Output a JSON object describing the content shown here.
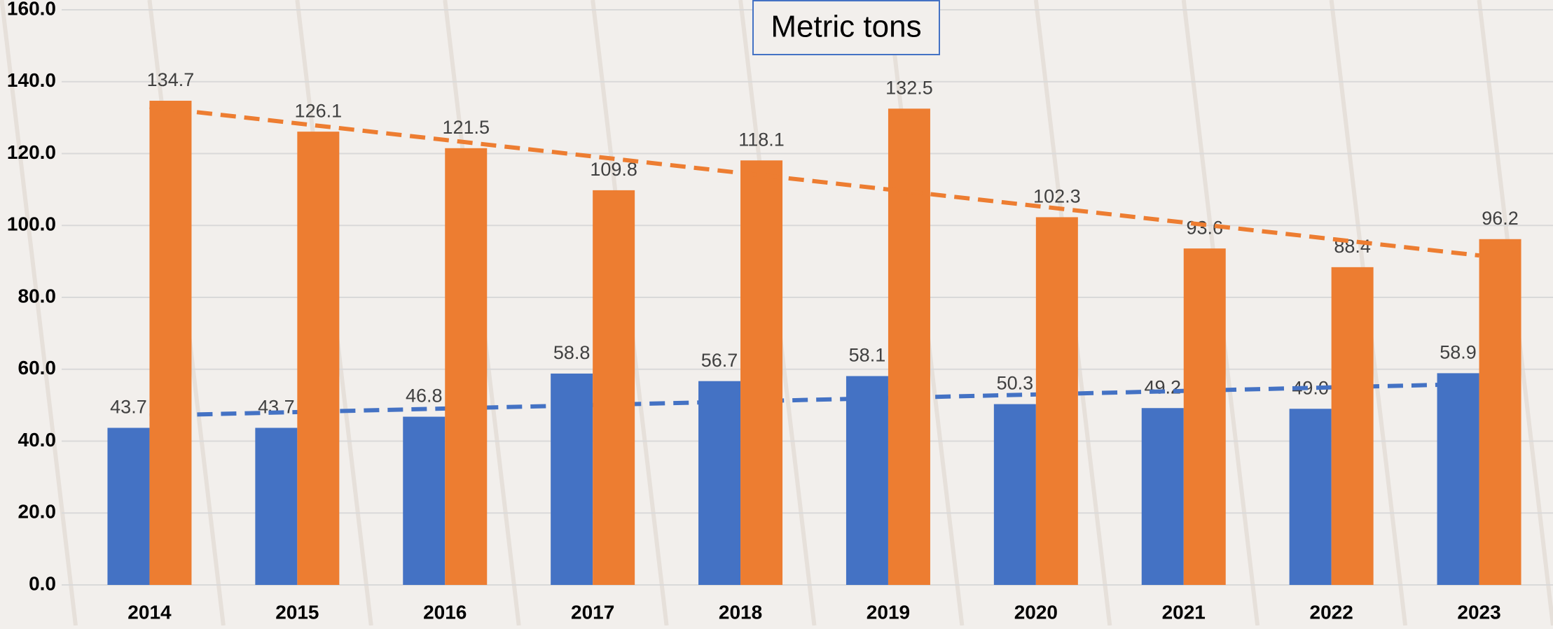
{
  "chart_data": {
    "type": "bar",
    "title": "Metric tons",
    "categories": [
      "2014",
      "2015",
      "2016",
      "2017",
      "2018",
      "2019",
      "2020",
      "2021",
      "2022",
      "2023"
    ],
    "series": [
      {
        "color": "#4472c4",
        "values": [
          43.7,
          43.7,
          46.8,
          58.8,
          56.7,
          58.1,
          50.3,
          49.2,
          49.0,
          58.9
        ],
        "value_labels": [
          "43.7",
          "43.7",
          "46.8",
          "58.8",
          "56.7",
          "58.1",
          "50.3",
          "49.2",
          "49.0",
          "58.9"
        ]
      },
      {
        "color": "#ed7d31",
        "values": [
          134.7,
          126.1,
          121.5,
          109.8,
          118.1,
          132.5,
          102.3,
          93.6,
          88.4,
          96.2
        ],
        "value_labels": [
          "134.7",
          "126.1",
          "121.5",
          "109.8",
          "118.1",
          "132.5",
          "102.3",
          "93.6",
          "88.4",
          "96.2"
        ]
      }
    ],
    "trendline": "linear",
    "ylim": [
      0,
      160
    ],
    "yticks": [
      {
        "value": 0,
        "label": "0.0"
      },
      {
        "value": 20,
        "label": "20.0"
      },
      {
        "value": 40,
        "label": "40.0"
      },
      {
        "value": 60,
        "label": "60.0"
      },
      {
        "value": 80,
        "label": "80.0"
      },
      {
        "value": 100,
        "label": "100.0"
      },
      {
        "value": 120,
        "label": "120.0"
      },
      {
        "value": 140,
        "label": "140.0"
      },
      {
        "value": 160,
        "label": "160.0"
      }
    ],
    "grid": true
  }
}
